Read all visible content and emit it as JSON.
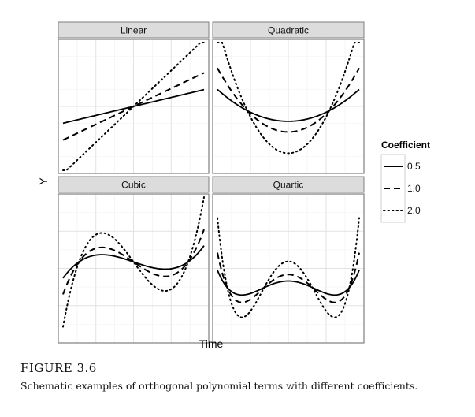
{
  "figure": {
    "label": "FIGURE 3.6",
    "caption": "Schematic examples of orthogonal polynomial terms with different coefficients."
  },
  "chart_data": {
    "type": "line",
    "xlabel": "Time",
    "ylabel": "Y",
    "grid": true,
    "legend": {
      "title": "Coefficient",
      "position": "right"
    },
    "series_styles": [
      {
        "name": "0.5",
        "coefficient": 0.5,
        "dash": "solid"
      },
      {
        "name": "1.0",
        "coefficient": 1.0,
        "dash": "dashed"
      },
      {
        "name": "2.0",
        "coefficient": 2.0,
        "dash": "dotted"
      }
    ],
    "panels": [
      {
        "title": "Linear",
        "degree": 1
      },
      {
        "title": "Quadratic",
        "degree": 2
      },
      {
        "title": "Cubic",
        "degree": 3
      },
      {
        "title": "Quartic",
        "degree": 4
      }
    ]
  },
  "colors": {
    "strip_fill": "#dcdcdc",
    "panel_border": "#7f7f7f",
    "grid_minor": "#f0f0f0",
    "grid_major": "#e2e2e2",
    "line": "#000000"
  }
}
